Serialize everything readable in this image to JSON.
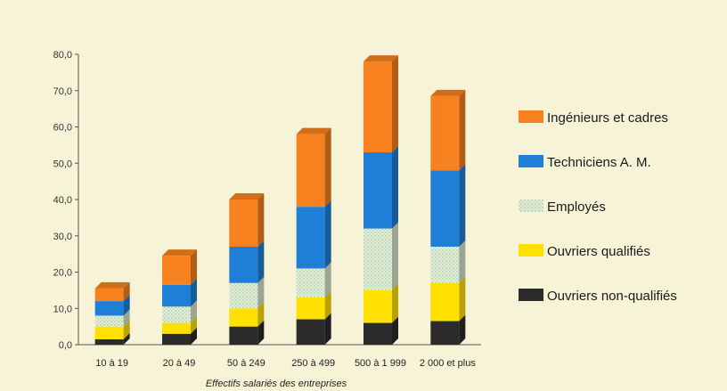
{
  "chart_data": {
    "type": "bar",
    "stacked": true,
    "title": "",
    "xlabel": "Effectifs salariés des entreprises",
    "ylabel": "",
    "ylim": [
      0,
      80
    ],
    "yticks": [
      "0,0",
      "10,0",
      "20,0",
      "30,0",
      "40,0",
      "50,0",
      "60,0",
      "70,0",
      "80,0"
    ],
    "grid": false,
    "legend": "right",
    "categories": [
      "10 à 19",
      "20 à 49",
      "50 à 249",
      "250 à 499",
      "500 à 1 999",
      "2 000 et plus"
    ],
    "series": [
      {
        "name": "Ouvriers non-qualifiés",
        "color": "#2b2b2b",
        "values": [
          1.5,
          3.0,
          5.0,
          7.0,
          6.0,
          6.5
        ]
      },
      {
        "name": "Ouvriers qualifiés",
        "color": "#ffe000",
        "values": [
          3.5,
          3.0,
          5.0,
          6.0,
          9.0,
          10.5
        ]
      },
      {
        "name": "Employés",
        "color": "#d6e6cc",
        "values": [
          3.0,
          4.5,
          7.0,
          8.0,
          17.0,
          10.0
        ]
      },
      {
        "name": "Techniciens A. M.",
        "color": "#1f7fd6",
        "values": [
          4.0,
          6.0,
          10.0,
          17.0,
          21.0,
          21.0
        ]
      },
      {
        "name": "Ingénieurs et cadres",
        "color": "#f7811e",
        "values": [
          3.5,
          8.0,
          13.0,
          20.0,
          25.0,
          20.5
        ]
      }
    ],
    "legend_order": [
      "Ingénieurs et cadres",
      "Techniciens A. M.",
      "Employés",
      "Ouvriers qualifiés",
      "Ouvriers non-qualifiés"
    ]
  }
}
